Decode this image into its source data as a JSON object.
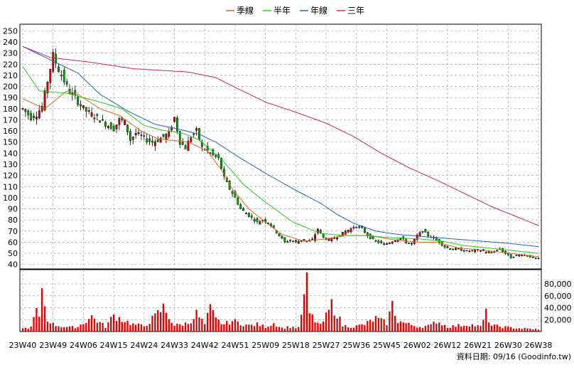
{
  "legend": [
    {
      "label": "季線",
      "color": "#d2691e"
    },
    {
      "label": "半年",
      "color": "#22cc22"
    },
    {
      "label": "年線",
      "color": "#1e64c8"
    },
    {
      "label": "三年",
      "color": "#cc2266"
    }
  ],
  "footer": "資料日期: 09/16  (Goodinfo.tw)",
  "colors": {
    "up": "#e60000",
    "down": "#00b400",
    "wick": "#000000",
    "volume": "#e60000",
    "grid": "#999999"
  },
  "chart_data": {
    "type": "candlestick+volume",
    "x_tick_labels": [
      "23W40",
      "23W49",
      "24W06",
      "24W15",
      "24W24",
      "24W33",
      "24W42",
      "24W51",
      "25W09",
      "25W18",
      "25W27",
      "25W36",
      "25W45",
      "26W02",
      "26W12",
      "26W21",
      "26W30",
      "26W38"
    ],
    "price_axis": {
      "ticks": [
        40,
        50,
        60,
        70,
        80,
        90,
        100,
        110,
        120,
        130,
        140,
        150,
        160,
        170,
        180,
        190,
        200,
        210,
        220,
        230,
        240,
        250
      ],
      "ylim": [
        36,
        256
      ]
    },
    "volume_axis": {
      "ticks": [
        20000,
        40000,
        60000,
        80000
      ],
      "tick_labels": [
        "20,000",
        "40,000",
        "60,000",
        "80,000"
      ],
      "ylim": [
        0,
        104000
      ]
    },
    "price_anchors": [
      [
        0,
        180
      ],
      [
        3,
        172
      ],
      [
        5,
        175
      ],
      [
        7,
        182
      ],
      [
        9,
        205
      ],
      [
        11,
        228
      ],
      [
        13,
        215
      ],
      [
        15,
        205
      ],
      [
        17,
        195
      ],
      [
        19,
        190
      ],
      [
        21,
        183
      ],
      [
        23,
        178
      ],
      [
        25,
        175
      ],
      [
        27,
        172
      ],
      [
        29,
        168
      ],
      [
        31,
        165
      ],
      [
        33,
        162
      ],
      [
        35,
        170
      ],
      [
        37,
        168
      ],
      [
        39,
        152
      ],
      [
        41,
        158
      ],
      [
        43,
        155
      ],
      [
        45,
        152
      ],
      [
        47,
        150
      ],
      [
        49,
        152
      ],
      [
        51,
        155
      ],
      [
        53,
        158
      ],
      [
        55,
        172
      ],
      [
        57,
        150
      ],
      [
        59,
        145
      ],
      [
        61,
        155
      ],
      [
        63,
        160
      ],
      [
        65,
        145
      ],
      [
        67,
        142
      ],
      [
        69,
        138
      ],
      [
        71,
        135
      ],
      [
        73,
        118
      ],
      [
        75,
        108
      ],
      [
        77,
        100
      ],
      [
        79,
        90
      ],
      [
        81,
        86
      ],
      [
        83,
        82
      ],
      [
        85,
        78
      ],
      [
        87,
        80
      ],
      [
        89,
        78
      ],
      [
        91,
        72
      ],
      [
        93,
        66
      ],
      [
        95,
        60
      ],
      [
        97,
        62
      ],
      [
        99,
        60
      ],
      [
        101,
        62
      ],
      [
        103,
        61
      ],
      [
        105,
        62
      ],
      [
        107,
        72
      ],
      [
        109,
        64
      ],
      [
        111,
        62
      ],
      [
        113,
        64
      ],
      [
        115,
        66
      ],
      [
        117,
        70
      ],
      [
        119,
        72
      ],
      [
        121,
        74
      ],
      [
        123,
        72
      ],
      [
        125,
        66
      ],
      [
        127,
        62
      ],
      [
        129,
        60
      ],
      [
        131,
        58
      ],
      [
        133,
        60
      ],
      [
        135,
        62
      ],
      [
        137,
        64
      ],
      [
        139,
        60
      ],
      [
        141,
        58
      ],
      [
        143,
        66
      ],
      [
        145,
        70
      ],
      [
        147,
        66
      ],
      [
        149,
        64
      ],
      [
        151,
        60
      ],
      [
        153,
        56
      ],
      [
        155,
        54
      ],
      [
        157,
        54
      ],
      [
        159,
        53
      ],
      [
        161,
        52
      ],
      [
        163,
        52
      ],
      [
        165,
        53
      ],
      [
        167,
        52
      ],
      [
        169,
        50
      ],
      [
        171,
        52
      ],
      [
        173,
        54
      ],
      [
        175,
        50
      ],
      [
        177,
        46
      ],
      [
        179,
        48
      ],
      [
        181,
        49
      ],
      [
        183,
        48
      ],
      [
        185,
        46
      ],
      [
        187,
        45
      ]
    ],
    "volume_anchors": [
      [
        0,
        5000
      ],
      [
        3,
        7000
      ],
      [
        4,
        22000
      ],
      [
        5,
        35000
      ],
      [
        6,
        20000
      ],
      [
        7,
        80000
      ],
      [
        8,
        42000
      ],
      [
        9,
        20000
      ],
      [
        10,
        18000
      ],
      [
        11,
        12000
      ],
      [
        14,
        9000
      ],
      [
        17,
        7000
      ],
      [
        20,
        8000
      ],
      [
        25,
        25000
      ],
      [
        30,
        8000
      ],
      [
        33,
        27000
      ],
      [
        40,
        12000
      ],
      [
        44,
        9000
      ],
      [
        48,
        25000
      ],
      [
        51,
        40000
      ],
      [
        55,
        10000
      ],
      [
        60,
        14000
      ],
      [
        63,
        30000
      ],
      [
        66,
        12000
      ],
      [
        68,
        38000
      ],
      [
        70,
        20000
      ],
      [
        73,
        12000
      ],
      [
        76,
        18000
      ],
      [
        79,
        14000
      ],
      [
        82,
        10000
      ],
      [
        85,
        12000
      ],
      [
        88,
        8000
      ],
      [
        91,
        14000
      ],
      [
        94,
        6000
      ],
      [
        97,
        8000
      ],
      [
        100,
        6000
      ],
      [
        103,
        80000
      ],
      [
        104,
        30000
      ],
      [
        106,
        18000
      ],
      [
        108,
        10000
      ],
      [
        110,
        25000
      ],
      [
        112,
        45000
      ],
      [
        114,
        30000
      ],
      [
        116,
        10000
      ],
      [
        120,
        8000
      ],
      [
        124,
        12000
      ],
      [
        128,
        22000
      ],
      [
        132,
        14000
      ],
      [
        134,
        45000
      ],
      [
        136,
        18000
      ],
      [
        140,
        12000
      ],
      [
        144,
        8000
      ],
      [
        148,
        10000
      ],
      [
        150,
        18000
      ],
      [
        154,
        8000
      ],
      [
        158,
        10000
      ],
      [
        162,
        12000
      ],
      [
        166,
        8000
      ],
      [
        168,
        30000
      ],
      [
        170,
        10000
      ],
      [
        174,
        8000
      ],
      [
        178,
        6000
      ],
      [
        182,
        5000
      ],
      [
        186,
        4000
      ],
      [
        187,
        3000
      ]
    ],
    "moving_averages": [
      {
        "name": "季線",
        "points": [
          [
            0,
            189
          ],
          [
            8,
            180
          ],
          [
            16,
            196
          ],
          [
            20,
            193
          ],
          [
            28,
            180
          ],
          [
            35,
            174
          ],
          [
            43,
            160
          ],
          [
            49,
            153
          ],
          [
            60,
            150
          ],
          [
            67,
            142
          ],
          [
            72,
            125
          ],
          [
            76,
            108
          ],
          [
            82,
            90
          ],
          [
            88,
            78
          ],
          [
            94,
            67
          ],
          [
            102,
            61
          ],
          [
            110,
            63
          ],
          [
            117,
            66
          ],
          [
            126,
            66
          ],
          [
            135,
            62
          ],
          [
            144,
            60
          ],
          [
            150,
            60
          ],
          [
            158,
            55
          ],
          [
            166,
            53
          ],
          [
            174,
            51
          ],
          [
            180,
            49
          ],
          [
            187,
            47
          ]
        ]
      },
      {
        "name": "半年",
        "points": [
          [
            0,
            218
          ],
          [
            6,
            196
          ],
          [
            16,
            194
          ],
          [
            28,
            186
          ],
          [
            36,
            180
          ],
          [
            44,
            165
          ],
          [
            50,
            161
          ],
          [
            58,
            158
          ],
          [
            64,
            152
          ],
          [
            72,
            135
          ],
          [
            80,
            112
          ],
          [
            88,
            96
          ],
          [
            98,
            78
          ],
          [
            108,
            68
          ],
          [
            116,
            66
          ],
          [
            124,
            66
          ],
          [
            134,
            64
          ],
          [
            144,
            63
          ],
          [
            152,
            61
          ],
          [
            160,
            57
          ],
          [
            168,
            55
          ],
          [
            176,
            53
          ],
          [
            187,
            50
          ]
        ]
      },
      {
        "name": "年線",
        "points": [
          [
            0,
            236
          ],
          [
            10,
            224
          ],
          [
            20,
            212
          ],
          [
            28,
            193
          ],
          [
            38,
            178
          ],
          [
            48,
            166
          ],
          [
            56,
            162
          ],
          [
            64,
            157
          ],
          [
            70,
            150
          ],
          [
            78,
            137
          ],
          [
            88,
            122
          ],
          [
            98,
            108
          ],
          [
            108,
            95
          ],
          [
            114,
            85
          ],
          [
            120,
            77
          ],
          [
            128,
            70
          ],
          [
            136,
            67
          ],
          [
            146,
            65
          ],
          [
            156,
            63
          ],
          [
            166,
            61
          ],
          [
            176,
            59
          ],
          [
            187,
            56
          ]
        ]
      },
      {
        "name": "三年",
        "points": [
          [
            0,
            236
          ],
          [
            10,
            226
          ],
          [
            24,
            222
          ],
          [
            40,
            216
          ],
          [
            60,
            213
          ],
          [
            70,
            208
          ],
          [
            78,
            198
          ],
          [
            88,
            186
          ],
          [
            100,
            176
          ],
          [
            110,
            167
          ],
          [
            120,
            155
          ],
          [
            130,
            140
          ],
          [
            140,
            127
          ],
          [
            150,
            116
          ],
          [
            160,
            104
          ],
          [
            170,
            92
          ],
          [
            180,
            82
          ],
          [
            187,
            75
          ]
        ]
      }
    ],
    "x_index_range": [
      0,
      187
    ],
    "grid": true
  }
}
